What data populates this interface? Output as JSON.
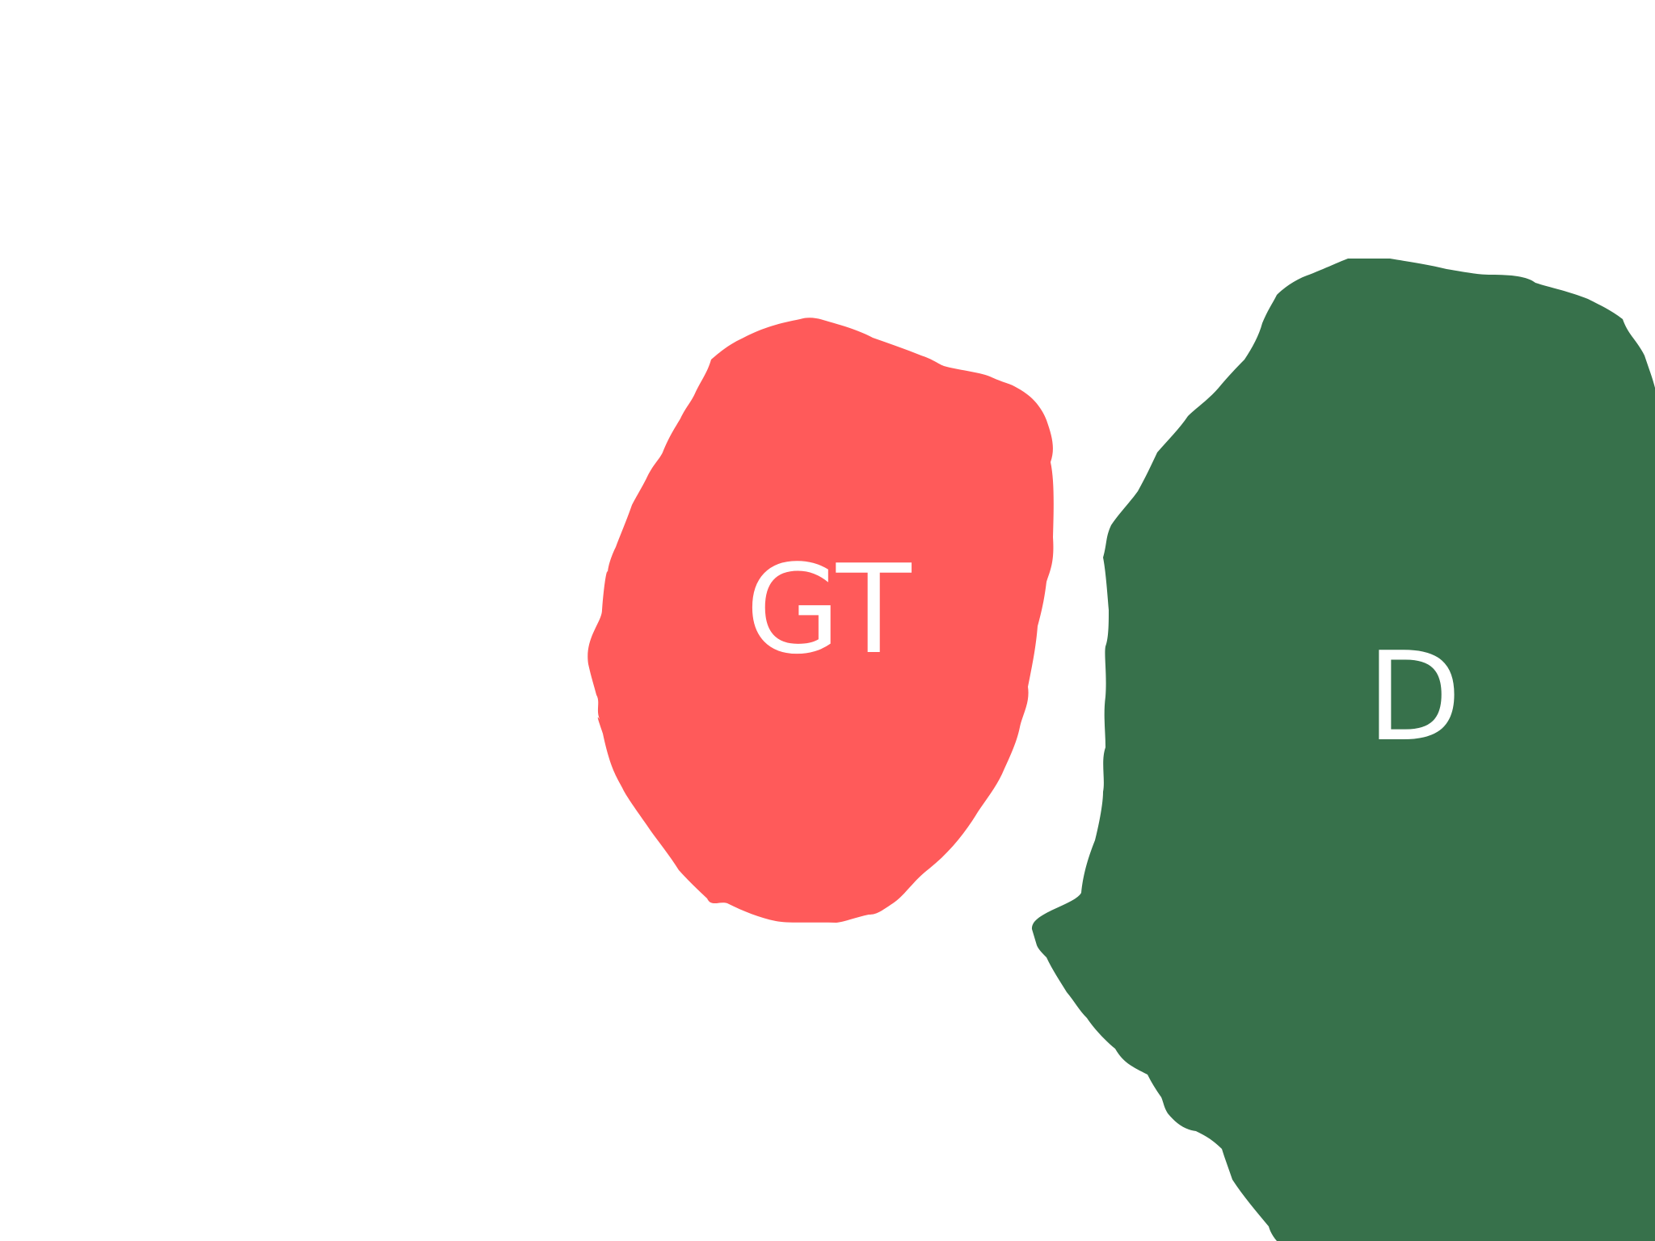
{
  "regions": [
    {
      "label": "GT",
      "color": "#ff5a5a"
    },
    {
      "label": "D",
      "color": "#37714b"
    }
  ]
}
